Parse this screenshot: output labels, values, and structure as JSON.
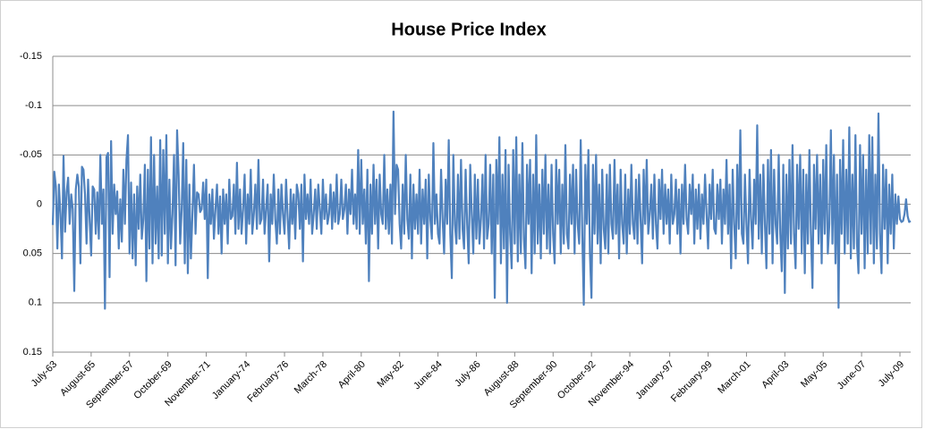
{
  "chart_data": {
    "type": "line",
    "title": "House Price Index",
    "color": "#4f81bd",
    "grid": true,
    "y_inverted": true,
    "ylim": [
      -0.15,
      0.15
    ],
    "yticks": [
      -0.15,
      -0.1,
      -0.05,
      0,
      0.05,
      0.1,
      0.15
    ],
    "categories": [
      "July-63",
      null,
      null,
      null,
      null,
      null,
      null,
      null,
      null,
      null,
      null,
      null,
      null,
      null,
      null,
      null,
      null,
      null,
      null,
      null,
      null,
      null,
      null,
      null,
      null,
      "August-65",
      null,
      null,
      null,
      null,
      null,
      null,
      null,
      null,
      null,
      null,
      null,
      null,
      null,
      null,
      null,
      null,
      null,
      null,
      null,
      null,
      null,
      null,
      null,
      null,
      "September-67",
      null,
      null,
      null,
      null,
      null,
      null,
      null,
      null,
      null,
      null,
      null,
      null,
      null,
      null,
      null,
      null,
      null,
      null,
      null,
      null,
      null,
      null,
      null,
      null,
      "October-69",
      null,
      null,
      null,
      null,
      null,
      null,
      null,
      null,
      null,
      null,
      null,
      null,
      null,
      null,
      null,
      null,
      null,
      null,
      null,
      null,
      null,
      null,
      null,
      null,
      "November-71",
      null,
      null,
      null,
      null,
      null,
      null,
      null,
      null,
      null,
      null,
      null,
      null,
      null,
      null,
      null,
      null,
      null,
      null,
      null,
      null,
      null,
      null,
      null,
      null,
      null,
      "January-74",
      null,
      null,
      null,
      null,
      null,
      null,
      null,
      null,
      null,
      null,
      null,
      null,
      null,
      null,
      null,
      null,
      null,
      null,
      null,
      null,
      null,
      null,
      null,
      null,
      "February-76",
      null,
      null,
      null,
      null,
      null,
      null,
      null,
      null,
      null,
      null,
      null,
      null,
      null,
      null,
      null,
      null,
      null,
      null,
      null,
      null,
      null,
      null,
      null,
      null,
      "March-78",
      null,
      null,
      null,
      null,
      null,
      null,
      null,
      null,
      null,
      null,
      null,
      null,
      null,
      null,
      null,
      null,
      null,
      null,
      null,
      null,
      null,
      null,
      null,
      null,
      "April-80",
      null,
      null,
      null,
      null,
      null,
      null,
      null,
      null,
      null,
      null,
      null,
      null,
      null,
      null,
      null,
      null,
      null,
      null,
      null,
      null,
      null,
      null,
      null,
      null,
      "May-82",
      null,
      null,
      null,
      null,
      null,
      null,
      null,
      null,
      null,
      null,
      null,
      null,
      null,
      null,
      null,
      null,
      null,
      null,
      null,
      null,
      null,
      null,
      null,
      null,
      "June-84",
      null,
      null,
      null,
      null,
      null,
      null,
      null,
      null,
      null,
      null,
      null,
      null,
      null,
      null,
      null,
      null,
      null,
      null,
      null,
      null,
      null,
      null,
      null,
      null,
      "July-86",
      null,
      null,
      null,
      null,
      null,
      null,
      null,
      null,
      null,
      null,
      null,
      null,
      null,
      null,
      null,
      null,
      null,
      null,
      null,
      null,
      null,
      null,
      null,
      null,
      "August-88",
      null,
      null,
      null,
      null,
      null,
      null,
      null,
      null,
      null,
      null,
      null,
      null,
      null,
      null,
      null,
      null,
      null,
      null,
      null,
      null,
      null,
      null,
      null,
      null,
      "September-90",
      null,
      null,
      null,
      null,
      null,
      null,
      null,
      null,
      null,
      null,
      null,
      null,
      null,
      null,
      null,
      null,
      null,
      null,
      null,
      null,
      null,
      null,
      null,
      null,
      "October-92",
      null,
      null,
      null,
      null,
      null,
      null,
      null,
      null,
      null,
      null,
      null,
      null,
      null,
      null,
      null,
      null,
      null,
      null,
      null,
      null,
      null,
      null,
      null,
      null,
      "November-94",
      null,
      null,
      null,
      null,
      null,
      null,
      null,
      null,
      null,
      null,
      null,
      null,
      null,
      null,
      null,
      null,
      null,
      null,
      null,
      null,
      null,
      null,
      null,
      null,
      null,
      "January-97",
      null,
      null,
      null,
      null,
      null,
      null,
      null,
      null,
      null,
      null,
      null,
      null,
      null,
      null,
      null,
      null,
      null,
      null,
      null,
      null,
      null,
      null,
      null,
      null,
      "February-99",
      null,
      null,
      null,
      null,
      null,
      null,
      null,
      null,
      null,
      null,
      null,
      null,
      null,
      null,
      null,
      null,
      null,
      null,
      null,
      null,
      null,
      null,
      null,
      null,
      "March-01",
      null,
      null,
      null,
      null,
      null,
      null,
      null,
      null,
      null,
      null,
      null,
      null,
      null,
      null,
      null,
      null,
      null,
      null,
      null,
      null,
      null,
      null,
      null,
      null,
      "April-03",
      null,
      null,
      null,
      null,
      null,
      null,
      null,
      null,
      null,
      null,
      null,
      null,
      null,
      null,
      null,
      null,
      null,
      null,
      null,
      null,
      null,
      null,
      null,
      null,
      "May-05",
      null,
      null,
      null,
      null,
      null,
      null,
      null,
      null,
      null,
      null,
      null,
      null,
      null,
      null,
      null,
      null,
      null,
      null,
      null,
      null,
      null,
      null,
      null,
      null,
      "June-07",
      null,
      null,
      null,
      null,
      null,
      null,
      null,
      null,
      null,
      null,
      null,
      null,
      null,
      null,
      null,
      null,
      null,
      null,
      null,
      null,
      null,
      null,
      null,
      null,
      "July-09",
      null,
      null,
      null,
      null,
      null,
      null,
      null
    ],
    "values": [
      0.021,
      -0.033,
      -0.018,
      0.045,
      -0.02,
      0.01,
      0.055,
      -0.049,
      0.028,
      -0.012,
      -0.027,
      0.02,
      -0.01,
      0.005,
      0.088,
      -0.015,
      -0.03,
      -0.018,
      0.06,
      -0.038,
      -0.035,
      -0.01,
      0.04,
      -0.025,
      0.015,
      0.052,
      -0.018,
      -0.015,
      0.03,
      -0.012,
      0.035,
      -0.05,
      0.02,
      -0.015,
      0.106,
      -0.048,
      -0.052,
      0.074,
      -0.064,
      0.03,
      -0.02,
      0.01,
      -0.013,
      0.045,
      -0.005,
      0.038,
      -0.035,
      0.02,
      -0.045,
      -0.07,
      0.05,
      -0.022,
      0.055,
      -0.01,
      0.062,
      -0.018,
      0.025,
      -0.03,
      0.035,
      0.015,
      -0.04,
      0.078,
      -0.035,
      0.045,
      -0.068,
      0.06,
      -0.05,
      0.04,
      -0.018,
      0.055,
      -0.065,
      0.052,
      -0.055,
      0.03,
      -0.07,
      0.06,
      -0.025,
      0.045,
      0.01,
      -0.05,
      0.062,
      -0.075,
      -0.03,
      0.04,
      0.005,
      -0.062,
      0.06,
      -0.045,
      0.07,
      -0.02,
      0.055,
      0.01,
      -0.04,
      0.03,
      -0.012,
      -0.01,
      0.008,
      0.005,
      -0.022,
      0.015,
      -0.025,
      0.075,
      -0.01,
      0.02,
      -0.015,
      0.035,
      0.005,
      -0.02,
      0.03,
      -0.008,
      0.05,
      -0.015,
      0.02,
      -0.01,
      0.04,
      -0.025,
      0.015,
      0.012,
      -0.02,
      0.03,
      -0.042,
      0.025,
      -0.015,
      0.03,
      0.005,
      -0.03,
      0.04,
      -0.01,
      0.02,
      -0.035,
      0.03,
      0.01,
      -0.02,
      0.025,
      -0.045,
      0.02,
      0.015,
      -0.025,
      0.03,
      0.005,
      -0.02,
      0.058,
      -0.01,
      0.02,
      -0.03,
      0.015,
      0.04,
      -0.015,
      0.03,
      -0.02,
      0.01,
      0.03,
      -0.025,
      0.012,
      0.045,
      -0.015,
      0.02,
      -0.01,
      0.035,
      -0.02,
      -0.01,
      0.025,
      -0.02,
      0.058,
      -0.03,
      0.015,
      -0.01,
      0.02,
      -0.025,
      0.03,
      0.01,
      -0.015,
      0.025,
      -0.02,
      0.005,
      0.03,
      -0.025,
      0.015,
      -0.01,
      0.02,
      0.01,
      -0.02,
      0.025,
      -0.012,
      0.018,
      -0.03,
      0.02,
      0.01,
      -0.025,
      0.015,
      0.005,
      -0.02,
      0.03,
      -0.015,
      0.01,
      -0.035,
      0.02,
      -0.01,
      0.025,
      -0.055,
      0.03,
      -0.045,
      0.02,
      -0.015,
      0.04,
      -0.035,
      0.078,
      -0.02,
      0.03,
      -0.04,
      0.02,
      -0.025,
      0.045,
      -0.03,
      0.01,
      0.02,
      -0.05,
      0.025,
      -0.015,
      0.03,
      -0.02,
      0.04,
      -0.094,
      0.01,
      -0.04,
      -0.035,
      0.02,
      0.045,
      -0.02,
      0.03,
      -0.05,
      0.015,
      0.035,
      -0.03,
      0.055,
      -0.02,
      0.025,
      -0.01,
      0.03,
      -0.035,
      0.04,
      -0.015,
      0.02,
      -0.025,
      0.055,
      -0.03,
      0.015,
      0.035,
      -0.062,
      0.02,
      -0.01,
      0.03,
      0.04,
      -0.035,
      0.015,
      0.05,
      -0.025,
      0.02,
      -0.065,
      0.03,
      0.075,
      -0.05,
      0.02,
      0.04,
      -0.03,
      0.035,
      -0.045,
      0.025,
      0.045,
      -0.035,
      0.02,
      0.06,
      -0.04,
      0.01,
      0.05,
      -0.03,
      0.035,
      -0.025,
      0.04,
      0.015,
      -0.03,
      0.045,
      -0.05,
      0.035,
      0.02,
      -0.04,
      0.05,
      -0.03,
      0.095,
      -0.045,
      0.02,
      -0.068,
      0.06,
      -0.03,
      0.045,
      -0.055,
      0.1,
      -0.04,
      0.03,
      0.065,
      -0.055,
      0.04,
      -0.068,
      0.058,
      -0.03,
      0.05,
      -0.062,
      0.035,
      0.065,
      -0.04,
      0.02,
      -0.045,
      0.07,
      -0.03,
      0.05,
      -0.07,
      0.04,
      -0.02,
      0.055,
      -0.035,
      0.03,
      -0.05,
      0.045,
      -0.02,
      0.05,
      -0.04,
      0.03,
      0.06,
      -0.045,
      0.02,
      -0.035,
      0.05,
      -0.02,
      0.04,
      -0.06,
      0.03,
      0.045,
      -0.03,
      0.02,
      -0.04,
      0.05,
      -0.035,
      0.02,
      0.04,
      -0.065,
      0.03,
      0.102,
      -0.04,
      0.02,
      -0.055,
      0.05,
      0.095,
      -0.04,
      0.03,
      -0.05,
      0.04,
      -0.02,
      0.06,
      -0.035,
      0.025,
      0.045,
      -0.03,
      0.05,
      -0.04,
      0.02,
      0.035,
      -0.045,
      0.03,
      -0.02,
      0.055,
      -0.035,
      0.02,
      0.04,
      -0.03,
      0.05,
      -0.015,
      0.03,
      -0.04,
      0.02,
      0.035,
      -0.025,
      0.04,
      -0.03,
      0.015,
      0.06,
      -0.035,
      0.02,
      -0.045,
      0.03,
      0.01,
      -0.02,
      0.035,
      -0.03,
      0.02,
      0.045,
      -0.025,
      0.015,
      -0.035,
      0.03,
      -0.02,
      0.02,
      -0.015,
      0.04,
      -0.03,
      0.02,
      0.01,
      -0.025,
      0.03,
      -0.015,
      0.05,
      -0.02,
      0.02,
      -0.04,
      0.015,
      0.03,
      -0.02,
      0.01,
      -0.03,
      0.04,
      -0.015,
      0.025,
      -0.02,
      0.035,
      -0.01,
      0.02,
      -0.03,
      0.01,
      0.045,
      -0.02,
      0.015,
      -0.035,
      0.025,
      0.03,
      -0.02,
      0.015,
      -0.025,
      0.04,
      -0.015,
      0.02,
      -0.045,
      0.03,
      -0.02,
      0.065,
      -0.035,
      0.02,
      0.055,
      -0.04,
      0.025,
      -0.075,
      0.03,
      0.04,
      -0.03,
      0.02,
      0.06,
      -0.035,
      0.015,
      0.045,
      -0.025,
      0.02,
      -0.08,
      0.035,
      -0.03,
      0.05,
      -0.04,
      0.02,
      0.065,
      -0.045,
      0.03,
      -0.055,
      0.06,
      -0.035,
      0.02,
      0.04,
      -0.05,
      0.03,
      0.068,
      -0.04,
      0.09,
      -0.03,
      0.045,
      -0.045,
      0.04,
      -0.06,
      0.03,
      0.065,
      -0.04,
      0.025,
      -0.05,
      0.05,
      -0.035,
      0.07,
      -0.03,
      0.04,
      -0.055,
      0.03,
      0.085,
      -0.04,
      0.025,
      -0.05,
      0.04,
      -0.03,
      0.06,
      -0.045,
      0.03,
      -0.06,
      0.05,
      0.02,
      -0.075,
      0.04,
      -0.05,
      0.06,
      -0.03,
      0.105,
      -0.045,
      0.03,
      -0.065,
      0.05,
      -0.035,
      0.04,
      -0.078,
      0.055,
      -0.03,
      0.045,
      -0.07,
      0.04,
      0.07,
      -0.06,
      0.03,
      -0.05,
      0.065,
      -0.035,
      0.05,
      -0.07,
      0.04,
      -0.068,
      0.06,
      -0.03,
      0.045,
      -0.092,
      0.03,
      0.07,
      -0.04,
      0.025,
      -0.035,
      0.06,
      -0.02,
      0.03,
      -0.03,
      0.045,
      -0.01,
      0.02,
      -0.008,
      0.015,
      0.018,
      0.017,
      0.01,
      -0.005,
      0.012,
      0.018,
      0.017
    ]
  }
}
